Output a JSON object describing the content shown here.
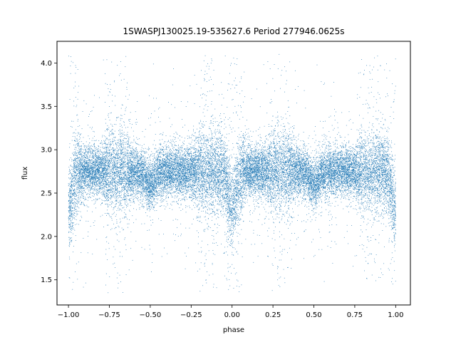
{
  "chart_data": {
    "type": "scatter",
    "title": "1SWASPJ130025.19-535627.6 Period 277946.0625s",
    "xlabel": "phase",
    "ylabel": "flux",
    "xlim": [
      -1.07,
      1.09
    ],
    "ylim": [
      1.21,
      4.25
    ],
    "xticks": [
      -1.0,
      -0.75,
      -0.5,
      -0.25,
      0.0,
      0.25,
      0.5,
      0.75,
      1.0
    ],
    "xtick_labels": [
      "−1.00",
      "−0.75",
      "−0.50",
      "−0.25",
      "0.00",
      "0.25",
      "0.50",
      "0.75",
      "1.00"
    ],
    "yticks": [
      1.5,
      2.0,
      2.5,
      3.0,
      3.5,
      4.0
    ],
    "ytick_labels": [
      "1.5",
      "2.0",
      "2.5",
      "3.0",
      "3.5",
      "4.0"
    ],
    "grid": false,
    "marker_color": "#1f77b4",
    "x_range": [
      -1.0,
      1.0
    ],
    "baseline_flux": 2.75,
    "primary_eclipse_flux": 2.35,
    "primary_eclipse_phases": [
      -1.0,
      0.0,
      1.0
    ],
    "secondary_eclipse_flux": 2.6,
    "secondary_eclipse_phases": [
      -0.5,
      0.5
    ],
    "gap_phases": [
      -0.7,
      -0.15,
      0.3,
      0.85
    ],
    "flux_spread": [
      1.35,
      4.1
    ],
    "approx_points": 24000
  }
}
